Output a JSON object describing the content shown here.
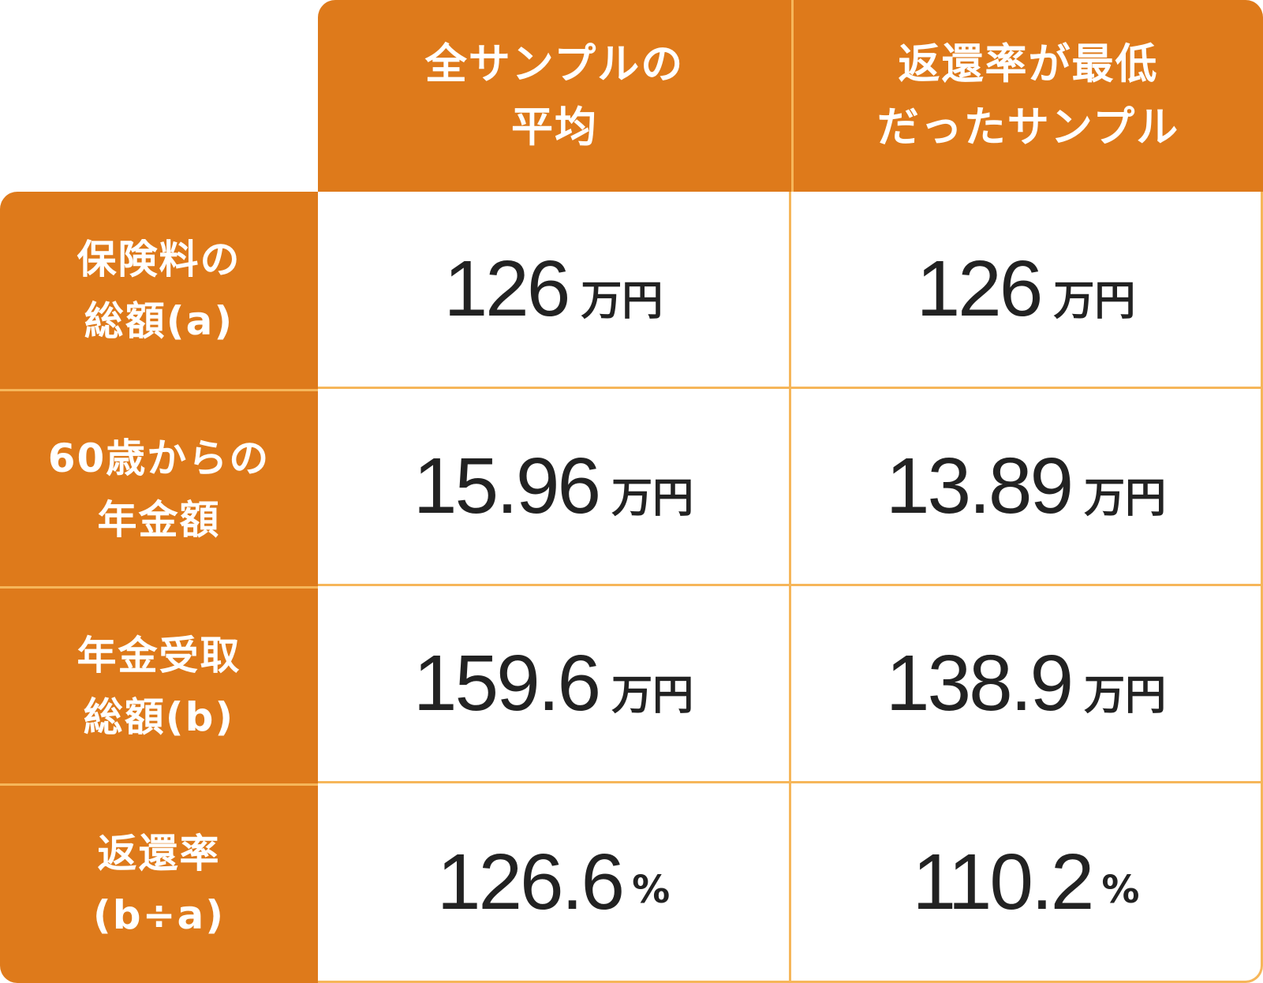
{
  "header": {
    "col1": "全サンプルの\n平均",
    "col2": "返還率が最低\nだったサンプル"
  },
  "rows": [
    {
      "label": "保険料の\n総額(a)",
      "v1": "126",
      "u1": "万円",
      "v2": "126",
      "u2": "万円"
    },
    {
      "label": "60歳からの\n年金額",
      "v1": "15.96",
      "u1": "万円",
      "v2": "13.89",
      "u2": "万円"
    },
    {
      "label": "年金受取\n総額(b)",
      "v1": "159.6",
      "u1": "万円",
      "v2": "138.9",
      "u2": "万円"
    },
    {
      "label": "返還率\n(b÷a)",
      "v1": "126.6",
      "u1": "%",
      "v2": "110.2",
      "u2": "%"
    }
  ],
  "colors": {
    "header_bg": "#de7a1b",
    "grid_line": "#f6b65a",
    "text_dark": "#222222"
  }
}
